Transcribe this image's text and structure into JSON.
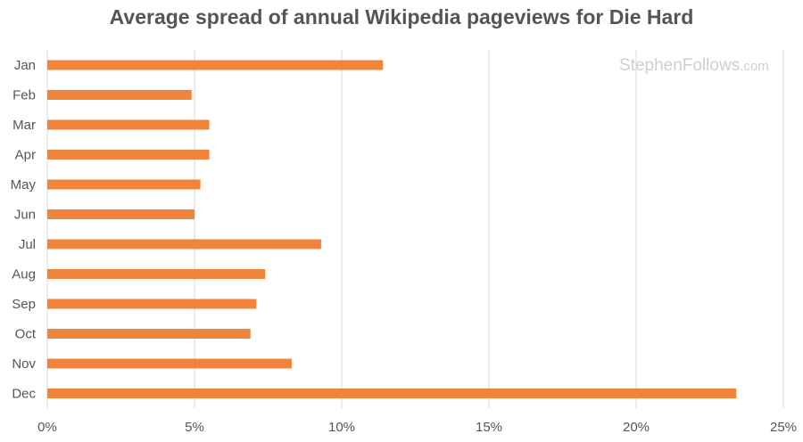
{
  "title": "Average spread of annual Wikipedia pageviews for Die Hard",
  "watermark": {
    "name": "StephenFollows",
    "tld": ".com"
  },
  "colors": {
    "bar": "#f0843a",
    "grid": "#d9d9d9",
    "text": "#555555"
  },
  "chart_data": {
    "type": "bar",
    "orientation": "horizontal",
    "categories": [
      "Jan",
      "Feb",
      "Mar",
      "Apr",
      "May",
      "Jun",
      "Jul",
      "Aug",
      "Sep",
      "Oct",
      "Nov",
      "Dec"
    ],
    "values": [
      11.4,
      4.9,
      5.5,
      5.5,
      5.2,
      5.0,
      9.3,
      7.4,
      7.1,
      6.9,
      8.3,
      23.4
    ],
    "xlim": [
      0,
      25
    ],
    "xticks": [
      0,
      5,
      10,
      15,
      20,
      25
    ],
    "xtick_labels": [
      "0%",
      "5%",
      "10%",
      "15%",
      "20%",
      "25%"
    ],
    "grid": true,
    "legend": "none"
  }
}
